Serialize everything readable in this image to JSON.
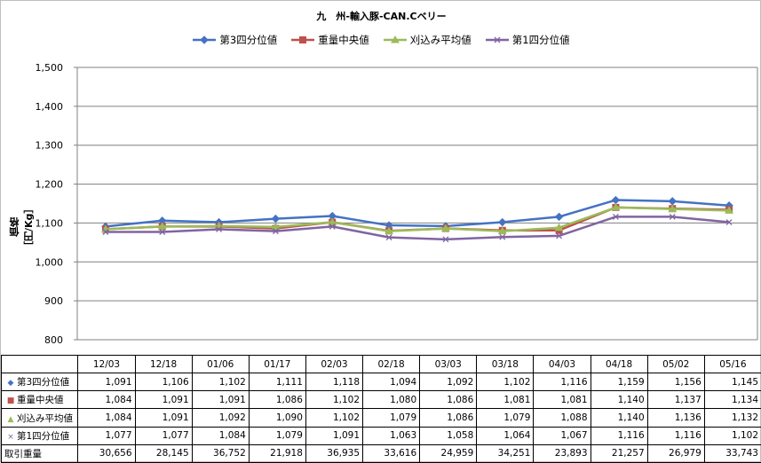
{
  "title": "九　州-輸入豚-CAN.Cベリー",
  "ylabel": "価格［円/Kg］",
  "chart_data": {
    "type": "line",
    "title": "九　州-輸入豚-CAN.Cベリー",
    "ylabel": "価格［円/Kg］",
    "ylim": [
      800,
      1500
    ],
    "yticks": [
      "800",
      "900",
      "1,000",
      "1,100",
      "1,200",
      "1,300",
      "1,400",
      "1,500"
    ],
    "ytick_values": [
      800,
      900,
      1000,
      1100,
      1200,
      1300,
      1400,
      1500
    ],
    "grid": true,
    "legend_position": "top",
    "categories": [
      "12/03",
      "12/18",
      "01/06",
      "01/17",
      "02/03",
      "02/18",
      "03/03",
      "03/18",
      "04/03",
      "04/18",
      "05/02",
      "05/16"
    ],
    "series": [
      {
        "name": "第3四分位値",
        "color": "#4472C4",
        "marker": "diamond",
        "symbol": "◆",
        "values": [
          1091,
          1106,
          1102,
          1111,
          1118,
          1094,
          1092,
          1102,
          1116,
          1159,
          1156,
          1145
        ],
        "labels": [
          "1,091",
          "1,106",
          "1,102",
          "1,111",
          "1,118",
          "1,094",
          "1,092",
          "1,102",
          "1,116",
          "1,159",
          "1,156",
          "1,145"
        ]
      },
      {
        "name": "重量中央値",
        "color": "#C0504D",
        "marker": "square",
        "symbol": "■",
        "values": [
          1084,
          1091,
          1091,
          1086,
          1102,
          1080,
          1086,
          1081,
          1081,
          1140,
          1137,
          1134
        ],
        "labels": [
          "1,084",
          "1,091",
          "1,091",
          "1,086",
          "1,102",
          "1,080",
          "1,086",
          "1,081",
          "1,081",
          "1,140",
          "1,137",
          "1,134"
        ]
      },
      {
        "name": "刈込み平均値",
        "color": "#9BBB59",
        "marker": "triangle",
        "symbol": "▲",
        "values": [
          1084,
          1091,
          1092,
          1090,
          1102,
          1079,
          1086,
          1079,
          1088,
          1140,
          1136,
          1132
        ],
        "labels": [
          "1,084",
          "1,091",
          "1,092",
          "1,090",
          "1,102",
          "1,079",
          "1,086",
          "1,079",
          "1,088",
          "1,140",
          "1,136",
          "1,132"
        ]
      },
      {
        "name": "第1四分位値",
        "color": "#8064A2",
        "marker": "x",
        "symbol": "×",
        "values": [
          1077,
          1077,
          1084,
          1079,
          1091,
          1063,
          1058,
          1064,
          1067,
          1116,
          1116,
          1102
        ],
        "labels": [
          "1,077",
          "1,077",
          "1,084",
          "1,079",
          "1,091",
          "1,063",
          "1,058",
          "1,064",
          "1,067",
          "1,116",
          "1,116",
          "1,102"
        ]
      }
    ],
    "volume": {
      "name": "取引重量",
      "labels": [
        "30,656",
        "28,145",
        "36,752",
        "21,918",
        "36,935",
        "33,616",
        "24,959",
        "34,251",
        "23,893",
        "21,257",
        "26,979",
        "33,743"
      ]
    }
  }
}
